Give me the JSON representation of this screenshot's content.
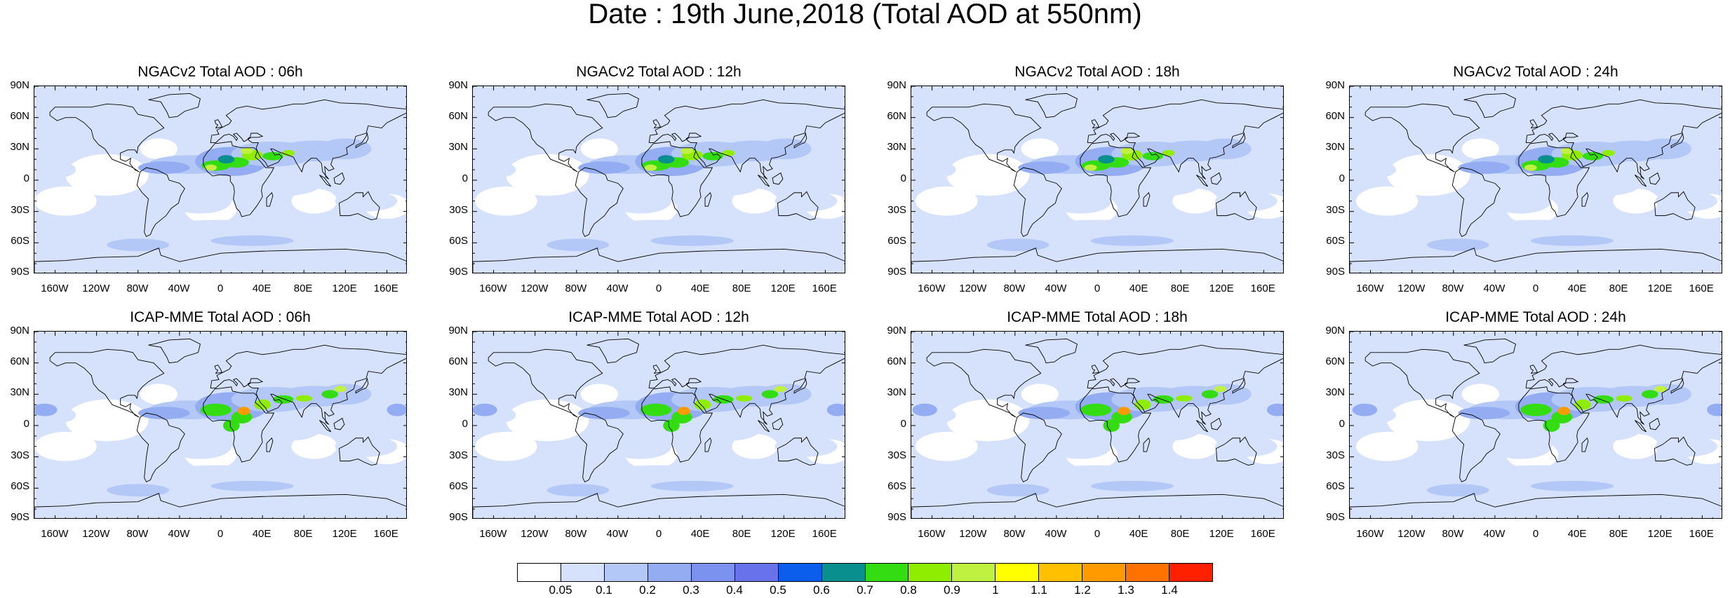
{
  "title": "Date : 19th June,2018 (Total AOD at 550nm)",
  "panels": [
    {
      "title": "NGACv2 Total AOD : 06h",
      "model": "NGACv2",
      "lead": "06h"
    },
    {
      "title": "NGACv2 Total AOD : 12h",
      "model": "NGACv2",
      "lead": "12h"
    },
    {
      "title": "NGACv2 Total AOD : 18h",
      "model": "NGACv2",
      "lead": "18h"
    },
    {
      "title": "NGACv2 Total AOD : 24h",
      "model": "NGACv2",
      "lead": "24h"
    },
    {
      "title": "ICAP-MME Total AOD : 06h",
      "model": "ICAP-MME",
      "lead": "06h"
    },
    {
      "title": "ICAP-MME Total AOD : 12h",
      "model": "ICAP-MME",
      "lead": "12h"
    },
    {
      "title": "ICAP-MME Total AOD : 18h",
      "model": "ICAP-MME",
      "lead": "18h"
    },
    {
      "title": "ICAP-MME Total AOD : 24h",
      "model": "ICAP-MME",
      "lead": "24h"
    }
  ],
  "lat_ticks": [
    "90N",
    "60N",
    "30N",
    "0",
    "30S",
    "60S",
    "90S"
  ],
  "lon_ticks": [
    "160W",
    "120W",
    "80W",
    "40W",
    "0",
    "40E",
    "80E",
    "120E",
    "160E"
  ],
  "colorbar": {
    "labels": [
      "0.05",
      "0.1",
      "0.2",
      "0.3",
      "0.4",
      "0.5",
      "0.6",
      "0.7",
      "0.8",
      "0.9",
      "1",
      "1.1",
      "1.2",
      "1.3",
      "1.4"
    ],
    "colors": [
      "#ffffff",
      "#d6e2fb",
      "#b4c8f7",
      "#93acf2",
      "#7b93ee",
      "#6872ea",
      "#0a5eeb",
      "#0a8f8f",
      "#33dd11",
      "#8fee00",
      "#bff140",
      "#ffff00",
      "#ffc000",
      "#ff9a00",
      "#ff7200",
      "#ff2000"
    ]
  }
}
